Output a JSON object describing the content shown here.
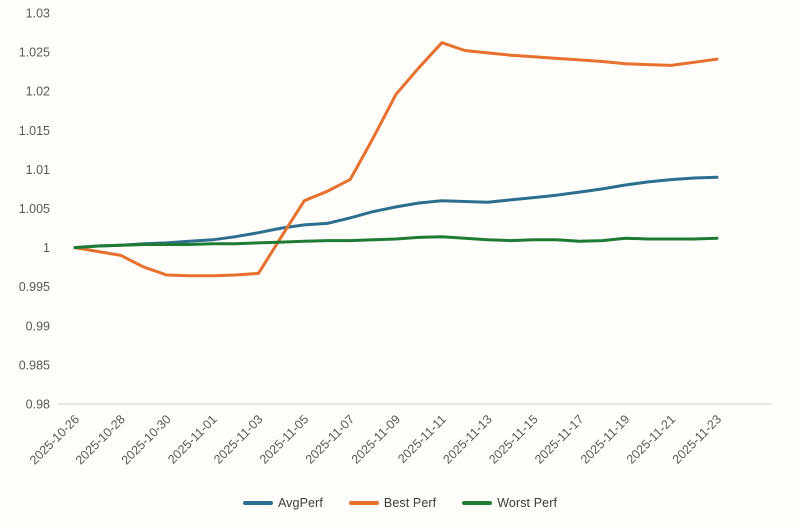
{
  "chart_data": {
    "type": "line",
    "title": "",
    "xlabel": "",
    "ylabel": "",
    "x": [
      "2025-10-26",
      "2025-10-27",
      "2025-10-28",
      "2025-10-29",
      "2025-10-30",
      "2025-10-31",
      "2025-11-01",
      "2025-11-02",
      "2025-11-03",
      "2025-11-04",
      "2025-11-05",
      "2025-11-06",
      "2025-11-07",
      "2025-11-08",
      "2025-11-09",
      "2025-11-10",
      "2025-11-11",
      "2025-11-12",
      "2025-11-13",
      "2025-11-14",
      "2025-11-15",
      "2025-11-16",
      "2025-11-17",
      "2025-11-18",
      "2025-11-19",
      "2025-11-20",
      "2025-11-21",
      "2025-11-22",
      "2025-11-23"
    ],
    "series": [
      {
        "name": "AvgPerf",
        "color": "#2c6e8e",
        "values": [
          1.0,
          1.0002,
          1.0003,
          1.0005,
          1.0006,
          1.0008,
          1.001,
          1.0014,
          1.0019,
          1.0025,
          1.0029,
          1.0031,
          1.0038,
          1.0046,
          1.0052,
          1.0057,
          1.006,
          1.0059,
          1.0058,
          1.0061,
          1.0064,
          1.0067,
          1.0071,
          1.0075,
          1.008,
          1.0084,
          1.0087,
          1.0089,
          1.009
        ]
      },
      {
        "name": "Best Perf",
        "color": "#e8702e",
        "values": [
          1.0,
          0.9995,
          0.999,
          0.9975,
          0.9965,
          0.9964,
          0.9964,
          0.9965,
          0.9967,
          1.0014,
          1.006,
          1.0072,
          1.0087,
          1.014,
          1.0196,
          1.023,
          1.0262,
          1.0252,
          1.0249,
          1.0246,
          1.0244,
          1.0242,
          1.024,
          1.0238,
          1.0235,
          1.0234,
          1.0233,
          1.0237,
          1.0241
        ]
      },
      {
        "name": "Worst Perf",
        "color": "#1e7b34",
        "values": [
          1.0,
          1.0002,
          1.0003,
          1.0004,
          1.0004,
          1.0004,
          1.0005,
          1.0005,
          1.0006,
          1.0007,
          1.0008,
          1.0009,
          1.0009,
          1.001,
          1.0011,
          1.0013,
          1.0014,
          1.0012,
          1.001,
          1.0009,
          1.001,
          1.001,
          1.0008,
          1.0009,
          1.0012,
          1.0011,
          1.0011,
          1.0011,
          1.0012
        ]
      }
    ],
    "ylim": [
      0.98,
      1.03
    ],
    "yticks": [
      0.98,
      0.985,
      0.99,
      0.995,
      1,
      1.005,
      1.01,
      1.015,
      1.02,
      1.025,
      1.03
    ],
    "ytick_labels": [
      "0.98",
      "0.985",
      "0.99",
      "0.995",
      "1",
      "1.005",
      "1.01",
      "1.015",
      "1.02",
      "1.025",
      "1.03"
    ],
    "xtick_labels": [
      "2025-10-26",
      "2025-10-28",
      "2025-10-30",
      "2025-11-01",
      "2025-11-03",
      "2025-11-05",
      "2025-11-07",
      "2025-11-09",
      "2025-11-11",
      "2025-11-13",
      "2025-11-15",
      "2025-11-17",
      "2025-11-19",
      "2025-11-21",
      "2025-11-23"
    ],
    "xtick_every": 2,
    "xtick_rotation": -45,
    "grid": false,
    "legend_position": "bottom",
    "axis_color": "#d9d9d9",
    "label_color": "#595959",
    "line_width": 3
  }
}
